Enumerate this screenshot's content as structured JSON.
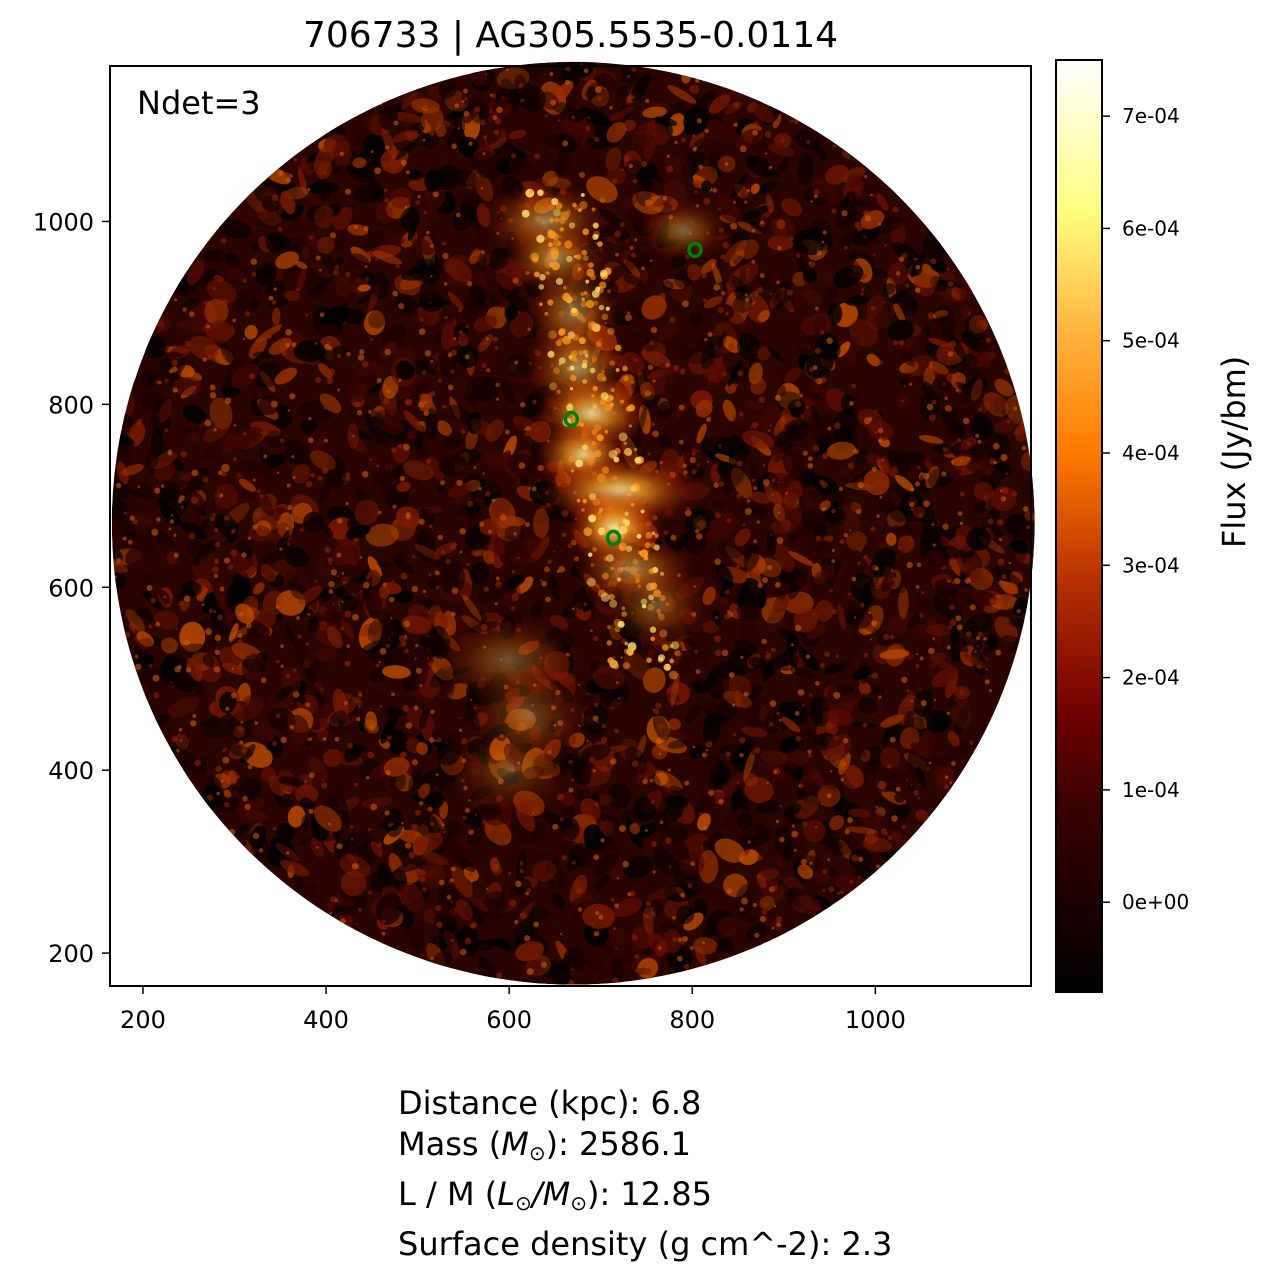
{
  "figure": {
    "title": "706733 | AG305.5535-0.0114",
    "annotation": "Ndet=3"
  },
  "image_panel": {
    "x_axis": {
      "range": [
        164,
        1170
      ],
      "ticks": [
        200,
        400,
        600,
        800,
        1000
      ],
      "tick_labels": [
        "200",
        "400",
        "600",
        "800",
        "1000"
      ]
    },
    "y_axis": {
      "range": [
        164,
        1170
      ],
      "ticks": [
        200,
        400,
        600,
        800,
        1000
      ],
      "tick_labels": [
        "200",
        "400",
        "600",
        "800",
        "1000"
      ]
    },
    "field_of_view": {
      "shape": "circle",
      "center": [
        670,
        670
      ],
      "radius": 504
    },
    "colormap": "afmhot",
    "detections": [
      {
        "x": 668,
        "y": 784,
        "color": "#008000"
      },
      {
        "x": 714,
        "y": 654,
        "color": "#008000"
      },
      {
        "x": 803,
        "y": 969,
        "color": "#008000"
      }
    ]
  },
  "colorbar": {
    "label": "Flux (Jy/bm)",
    "range": [
      -8e-05,
      0.00075
    ],
    "ticks": [
      0,
      0.0001,
      0.0002,
      0.0003,
      0.0004,
      0.0005,
      0.0006,
      0.0007
    ],
    "tick_labels": [
      "0e+00",
      "1e-04",
      "2e-04",
      "3e-04",
      "4e-04",
      "5e-04",
      "6e-04",
      "7e-04"
    ]
  },
  "stats": {
    "distance": "Distance (kpc): 6.8",
    "mass_prefix": "Mass (",
    "mass_unit": "M",
    "mass_sub": "⊙",
    "mass_suffix": "): 2586.1",
    "lm_prefix": "L / M (",
    "lm_unit_l": "L",
    "lm_sub_l": "⊙",
    "lm_slash": "/",
    "lm_unit_m": "M",
    "lm_sub_m": "⊙",
    "lm_suffix": "): 12.85",
    "surface_density": "Surface density (g cm^-2): 2.3"
  }
}
